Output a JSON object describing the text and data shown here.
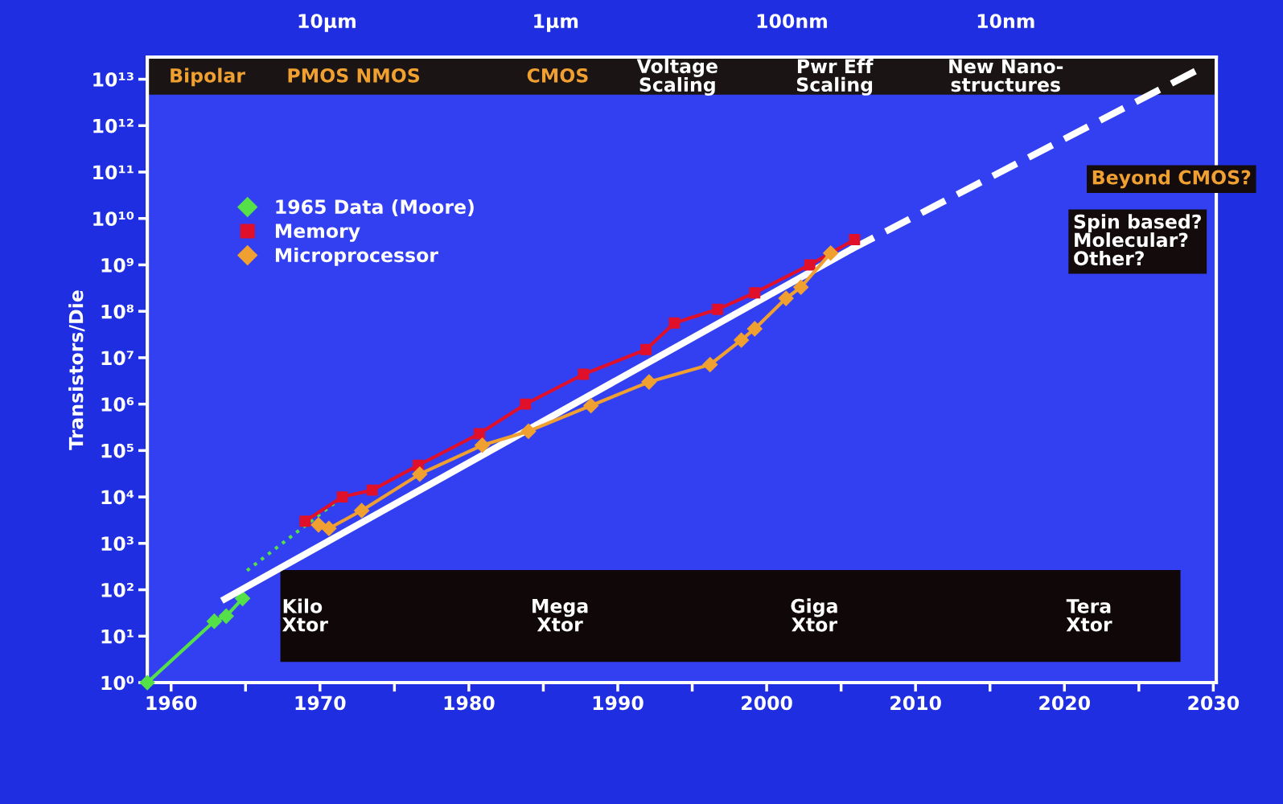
{
  "chart_data": {
    "type": "line",
    "ylabel": "Transistors/Die",
    "log": "y",
    "xlim": [
      1958.4,
      2030.2
    ],
    "ylim": [
      1,
      30000000000000.0
    ],
    "xticks": [
      1960,
      {
        "value": 1965,
        "label": null
      },
      1970,
      {
        "value": 1975,
        "label": null
      },
      1980,
      {
        "value": 1985,
        "label": null
      },
      1990,
      {
        "value": 1995,
        "label": null
      },
      2000,
      {
        "value": 2005,
        "label": null
      },
      2010,
      {
        "value": 2015,
        "label": null
      },
      2020,
      {
        "value": 2025,
        "label": null
      },
      2030
    ],
    "yticks": [
      {
        "value": 1,
        "label": "10⁰"
      },
      {
        "value": 10,
        "label": "10¹"
      },
      {
        "value": 100,
        "label": "10²"
      },
      {
        "value": 1000,
        "label": "10³"
      },
      {
        "value": 10000,
        "label": "10⁴"
      },
      {
        "value": 100000,
        "label": "10⁵"
      },
      {
        "value": 1000000,
        "label": "10⁶"
      },
      {
        "value": 10000000,
        "label": "10⁷"
      },
      {
        "value": 100000000,
        "label": "10⁸"
      },
      {
        "value": 1000000000,
        "label": "10⁹"
      },
      {
        "value": 10000000000,
        "label": "10¹⁰"
      },
      {
        "value": 100000000000,
        "label": "10¹¹"
      },
      {
        "value": 1000000000000,
        "label": "10¹²"
      },
      {
        "value": 10000000000000,
        "label": "10¹³"
      }
    ],
    "legend": "top left",
    "grid": false,
    "series": [
      {
        "name": "1965 Data (Moore)",
        "color": "#55e04a",
        "marker": "diamond",
        "line_style": "solid",
        "x": [
          1958.4,
          1962.9,
          1963.7,
          1964.8
        ],
        "values": [
          1,
          21,
          27,
          65
        ]
      },
      {
        "color": "#55e04a",
        "marker": "none",
        "line_style": "dotted",
        "x": [
          1965.1,
          1971.5
        ],
        "values": [
          260,
          10000
        ]
      },
      {
        "color": "#ffffff",
        "marker": "none",
        "line_style": "solid",
        "x": [
          1963.6,
          2005.6
        ],
        "values": [
          63,
          2100000000
        ]
      },
      {
        "color": "#ffffff",
        "marker": "none",
        "line_style": "dashed",
        "x": [
          2005.6,
          2028.8
        ],
        "values": [
          2100000000,
          15000000000000
        ]
      },
      {
        "name": "Memory",
        "color": "#e0102a",
        "marker": "square",
        "line_style": "solid",
        "x": [
          1969.0,
          1971.5,
          1973.5,
          1976.6,
          1980.7,
          1983.8,
          1987.7,
          1991.9,
          1993.8,
          1996.7,
          1999.2,
          2002.9,
          2005.9
        ],
        "values": [
          3000,
          10000,
          14000,
          48000,
          230000,
          1000000,
          4400000,
          15000000,
          56000000,
          110000000,
          250000000,
          1000000000,
          3500000000
        ]
      },
      {
        "name": "Microprocessor",
        "color": "#f0a030",
        "marker": "diamond",
        "line_style": "solid",
        "x": [
          1969.9,
          1970.6,
          1972.8,
          1976.7,
          1980.9,
          1984.0,
          1988.2,
          1992.1,
          1996.2,
          1998.3,
          1999.2,
          2001.3,
          2002.3,
          2004.3
        ],
        "values": [
          2500,
          2100,
          5100,
          31000,
          130000,
          260000,
          930000,
          3000000,
          7100000,
          24000000,
          42000000,
          190000000,
          330000000,
          1800000000
        ]
      }
    ],
    "annotations": [
      "Bipolar",
      "PMOS NMOS",
      "CMOS",
      "Voltage\nScaling",
      "Pwr Eff\nScaling",
      "New Nano-\nstructures",
      "Beyond CMOS?",
      "Spin based?\nMolecular?\nOther?",
      "Kilo\nXtor",
      "Mega\nXtor",
      "Giga\nXtor",
      "Tera\nXtor",
      "10µm",
      "1µm",
      "100nm",
      "10nm"
    ]
  }
}
